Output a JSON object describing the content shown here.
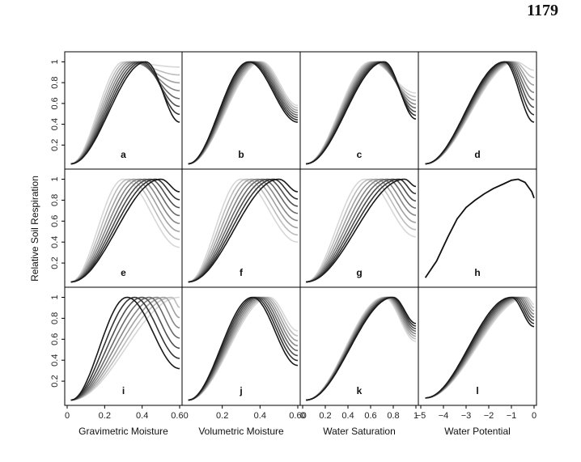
{
  "page_number": "1179",
  "chart_data": {
    "type": "line",
    "ylabel": "Relative Soil Respiration",
    "y_ticks": [
      "0.2",
      "0.4",
      "0.6",
      "0.8",
      "1"
    ],
    "ylim": [
      0,
      1.05
    ],
    "grid": false,
    "legend": "none",
    "columns": [
      {
        "xlabel": "Gravimetric Moisture",
        "xlim": [
          0,
          0.6
        ],
        "x_ticks": [
          "0",
          "0.2",
          "0.4",
          "0.60"
        ]
      },
      {
        "xlabel": "Volumetric Moisture",
        "xlim": [
          0,
          0.6
        ],
        "x_ticks": [
          "0.2",
          "0.4",
          "0.60"
        ]
      },
      {
        "xlabel": "Water Saturation",
        "xlim": [
          0,
          1
        ],
        "x_ticks": [
          "0",
          "0.2",
          "0.4",
          "0.6",
          "0.8",
          "1"
        ]
      },
      {
        "xlabel": "Water Potential",
        "xlim": [
          -5,
          0
        ],
        "x_ticks": [
          "−5",
          "−4",
          "−3",
          "−2",
          "−1",
          "0"
        ]
      }
    ],
    "panels": [
      {
        "label": "a",
        "row": 0,
        "col": 0,
        "curve_count": 8,
        "x_start": 0.02,
        "x_end": 0.6,
        "y_start": 0.02,
        "peak_x": [
          0.3,
          0.42
        ],
        "y_end": [
          0.95,
          0.42
        ]
      },
      {
        "label": "b",
        "row": 0,
        "col": 1,
        "curve_count": 8,
        "x_start": 0.02,
        "x_end": 0.6,
        "y_start": 0.02,
        "peak_x": [
          0.41,
          0.34
        ],
        "y_end": [
          0.58,
          0.42
        ]
      },
      {
        "label": "c",
        "row": 0,
        "col": 2,
        "curve_count": 8,
        "x_start": 0.03,
        "x_end": 1.0,
        "y_start": 0.02,
        "peak_x": [
          0.6,
          0.72
        ],
        "y_end": [
          0.7,
          0.45
        ]
      },
      {
        "label": "d",
        "row": 0,
        "col": 3,
        "curve_count": 8,
        "x_start": -4.8,
        "x_end": 0.0,
        "y_start": 0.02,
        "peak_x": [
          -0.8,
          -1.3
        ],
        "y_end": [
          0.92,
          0.42
        ]
      },
      {
        "label": "e",
        "row": 1,
        "col": 0,
        "curve_count": 8,
        "x_start": 0.02,
        "x_end": 0.6,
        "y_start": 0.02,
        "peak_x": [
          0.3,
          0.5
        ],
        "y_end": [
          0.35,
          0.88
        ]
      },
      {
        "label": "f",
        "row": 1,
        "col": 1,
        "curve_count": 8,
        "x_start": 0.02,
        "x_end": 0.6,
        "y_start": 0.02,
        "peak_x": [
          0.3,
          0.5
        ],
        "y_end": [
          0.4,
          0.88
        ]
      },
      {
        "label": "g",
        "row": 1,
        "col": 2,
        "curve_count": 8,
        "x_start": 0.03,
        "x_end": 1.0,
        "y_start": 0.02,
        "peak_x": [
          0.55,
          0.9
        ],
        "y_end": [
          0.45,
          0.93
        ]
      },
      {
        "label": "h",
        "row": 1,
        "col": 3,
        "curve_count": 1,
        "x": [
          -4.8,
          -4.3,
          -3.8,
          -3.4,
          -3.0,
          -2.6,
          -2.2,
          -1.8,
          -1.4,
          -1.0,
          -0.7,
          -0.4,
          -0.1,
          0.0
        ],
        "y": [
          0.06,
          0.22,
          0.45,
          0.62,
          0.73,
          0.8,
          0.86,
          0.91,
          0.95,
          0.99,
          1.0,
          0.97,
          0.88,
          0.82
        ]
      },
      {
        "label": "i",
        "row": 2,
        "col": 0,
        "curve_count": 8,
        "x_start": 0.02,
        "x_end": 0.6,
        "y_start": 0.02,
        "peak_x": [
          0.6,
          0.32
        ],
        "y_end": [
          1.0,
          0.32
        ]
      },
      {
        "label": "j",
        "row": 2,
        "col": 1,
        "curve_count": 8,
        "x_start": 0.02,
        "x_end": 0.6,
        "y_start": 0.02,
        "peak_x": [
          0.45,
          0.36
        ],
        "y_end": [
          0.68,
          0.35
        ]
      },
      {
        "label": "k",
        "row": 2,
        "col": 2,
        "curve_count": 8,
        "x_start": 0.03,
        "x_end": 1.0,
        "y_start": 0.02,
        "peak_x": [
          0.72,
          0.8
        ],
        "y_end": [
          0.58,
          0.75
        ]
      },
      {
        "label": "l",
        "row": 2,
        "col": 3,
        "curve_count": 8,
        "x_start": -4.8,
        "x_end": 0.0,
        "y_start": 0.04,
        "peak_x": [
          -0.3,
          -1.0
        ],
        "y_end": [
          0.93,
          0.72
        ]
      }
    ]
  }
}
